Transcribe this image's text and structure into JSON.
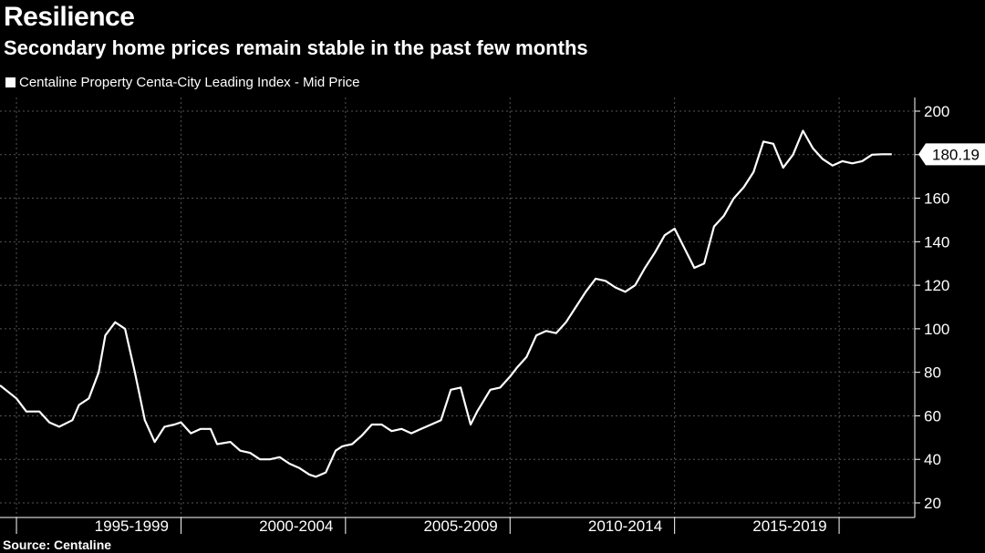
{
  "header": {
    "title": "Resilience",
    "subtitle": "Secondary home prices remain stable in the past few months"
  },
  "footer": {
    "source": "Source: Centaline"
  },
  "colors": {
    "background": "#000000",
    "line": "#ffffff",
    "grid": "#555555",
    "badge_bg": "#ffffff",
    "badge_text": "#000000"
  },
  "chart_data": {
    "type": "line",
    "title": "Resilience",
    "subtitle": "Secondary home prices remain stable in the past few months",
    "legend": [
      "Centaline Property Centa-City Leading Index - Mid Price"
    ],
    "legend_position": "top-left",
    "xlabel": "",
    "ylabel": "",
    "x_range": [
      1993.5,
      2020.8
    ],
    "ylim": [
      20,
      200
    ],
    "y_ticks": [
      20,
      40,
      60,
      80,
      100,
      120,
      140,
      160,
      180,
      200
    ],
    "x_category_labels": [
      {
        "label": "1995-1999",
        "center": 1997.5
      },
      {
        "label": "2000-2004",
        "center": 2002.5
      },
      {
        "label": "2005-2009",
        "center": 2007.5
      },
      {
        "label": "2010-2014",
        "center": 2012.5
      },
      {
        "label": "2015-2019",
        "center": 2017.5
      }
    ],
    "x_boundaries": [
      1994,
      1999,
      2004,
      2009,
      2014,
      2019
    ],
    "last_value_label": "180.19",
    "grid": true,
    "series": [
      {
        "name": "Centaline Property Centa-City Leading Index - Mid Price",
        "x": [
          1993.5,
          1994.0,
          1994.3,
          1994.7,
          1995.0,
          1995.3,
          1995.7,
          1995.9,
          1996.2,
          1996.5,
          1996.7,
          1997.0,
          1997.3,
          1997.6,
          1997.9,
          1998.2,
          1998.5,
          1998.8,
          1999.0,
          1999.3,
          1999.6,
          1999.9,
          2000.1,
          2000.5,
          2000.8,
          2001.1,
          2001.4,
          2001.7,
          2002.0,
          2002.3,
          2002.6,
          2002.9,
          2003.1,
          2003.4,
          2003.7,
          2003.9,
          2004.2,
          2004.5,
          2004.8,
          2005.1,
          2005.4,
          2005.7,
          2006.0,
          2006.3,
          2006.6,
          2006.9,
          2007.2,
          2007.5,
          2007.8,
          2008.0,
          2008.4,
          2008.7,
          2009.0,
          2009.2,
          2009.5,
          2009.8,
          2010.1,
          2010.4,
          2010.7,
          2011.0,
          2011.3,
          2011.6,
          2011.9,
          2012.2,
          2012.5,
          2012.8,
          2013.1,
          2013.4,
          2013.7,
          2014.0,
          2014.3,
          2014.6,
          2014.9,
          2015.2,
          2015.5,
          2015.8,
          2016.1,
          2016.4,
          2016.7,
          2017.0,
          2017.3,
          2017.6,
          2017.9,
          2018.2,
          2018.5,
          2018.8,
          2019.1,
          2019.4,
          2019.7,
          2020.0,
          2020.3,
          2020.6
        ],
        "values": [
          74,
          68,
          62,
          62,
          57,
          55,
          58,
          65,
          68,
          80,
          97,
          103,
          100,
          80,
          58,
          48,
          55,
          56,
          57,
          52,
          54,
          54,
          47,
          48,
          44,
          43,
          40,
          40,
          41,
          38,
          36,
          33,
          32,
          34,
          44,
          46,
          47,
          51,
          56,
          56,
          53,
          54,
          52,
          54,
          56,
          58,
          72,
          73,
          56,
          62,
          72,
          73,
          78,
          82,
          87,
          97,
          99,
          98,
          103,
          110,
          117,
          123,
          122,
          119,
          117,
          120,
          128,
          135,
          143,
          146,
          137,
          128,
          130,
          147,
          152,
          160,
          165,
          172,
          186,
          185,
          174,
          180,
          191,
          183,
          178,
          175,
          177,
          176,
          177,
          180,
          180.19,
          180.19
        ]
      }
    ]
  }
}
